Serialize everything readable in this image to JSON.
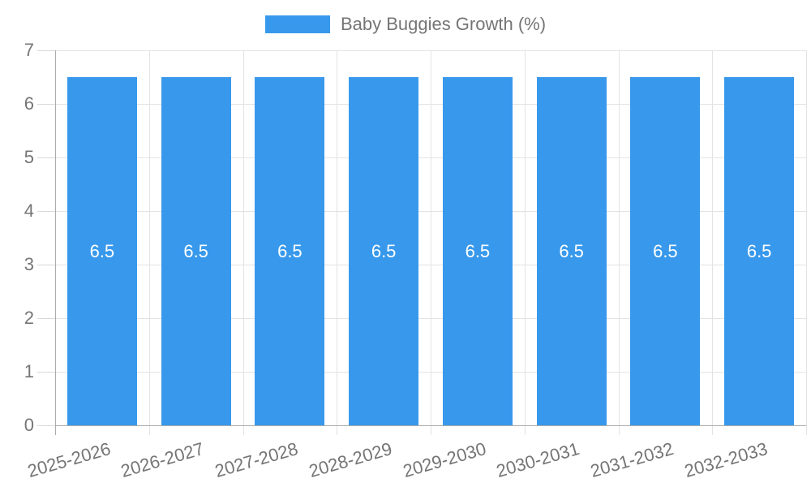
{
  "legend": {
    "label": "Baby Buggies Growth (%)"
  },
  "chart_data": {
    "type": "bar",
    "title": "",
    "xlabel": "",
    "ylabel": "",
    "categories": [
      "2025-2026",
      "2026-2027",
      "2027-2028",
      "2028-2029",
      "2029-2030",
      "2030-2031",
      "2031-2032",
      "2032-2033"
    ],
    "series": [
      {
        "name": "Baby Buggies Growth (%)",
        "values": [
          6.5,
          6.5,
          6.5,
          6.5,
          6.5,
          6.5,
          6.5,
          6.5
        ],
        "value_labels": [
          "6.5",
          "6.5",
          "6.5",
          "6.5",
          "6.5",
          "6.5",
          "6.5",
          "6.5"
        ]
      }
    ],
    "ylim": [
      0,
      7
    ],
    "yticks": [
      "0",
      "1",
      "2",
      "3",
      "4",
      "5",
      "6",
      "7"
    ],
    "grid": true,
    "legend_position": "top-center"
  },
  "colors": {
    "bar": "#3899EC",
    "axis_text": "#757575",
    "value_label": "#FFFFFF",
    "gridline": "#E3E3E3",
    "tick": "#D9D9D9",
    "axis_border": "#ABABAB",
    "background": "#FFFFFF"
  }
}
